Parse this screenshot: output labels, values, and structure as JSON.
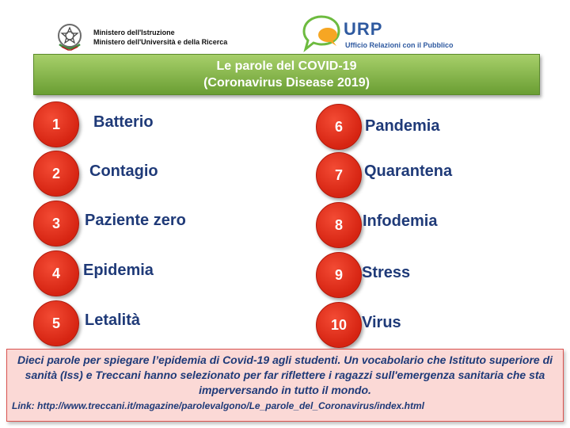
{
  "header": {
    "ministry_line1": "Ministero dell'Istruzione",
    "ministry_line2": "Ministero dell'Università e della Ricerca",
    "urp_title": "URP",
    "urp_subtitle": "Ufficio  Relazioni  con il Pubblico"
  },
  "banner": {
    "title": "Le parole del COVID-19",
    "subtitle": "(Coronavirus Disease 2019)"
  },
  "words": [
    {
      "num": "1",
      "label": "Batterio"
    },
    {
      "num": "2",
      "label": "Contagio"
    },
    {
      "num": "3",
      "label": "Paziente zero"
    },
    {
      "num": "4",
      "label": "Epidemia"
    },
    {
      "num": "5",
      "label": "Letalità"
    },
    {
      "num": "6",
      "label": "Pandemia"
    },
    {
      "num": "7",
      "label": "Quarantena"
    },
    {
      "num": "8",
      "label": "Infodemia"
    },
    {
      "num": "9",
      "label": "Stress"
    },
    {
      "num": "10",
      "label": "Virus"
    }
  ],
  "note": {
    "text": "Dieci parole per spiegare l’epidemia di Covid-19 agli studenti. Un vocabolario che Istituto superiore di sanità (Iss) e Treccani hanno selezionato per far riflettere i ragazzi sull'emergenza sanitaria che sta imperversando in tutto il mondo.",
    "link": "Link: http://www.treccani.it/magazine/parolevalgono/Le_parole_del_Coronavirus/index.html"
  },
  "colors": {
    "circle": "#e0301c",
    "banner": "#8fbf4e",
    "text": "#1f3a78",
    "note_bg": "#fbd9d6"
  }
}
